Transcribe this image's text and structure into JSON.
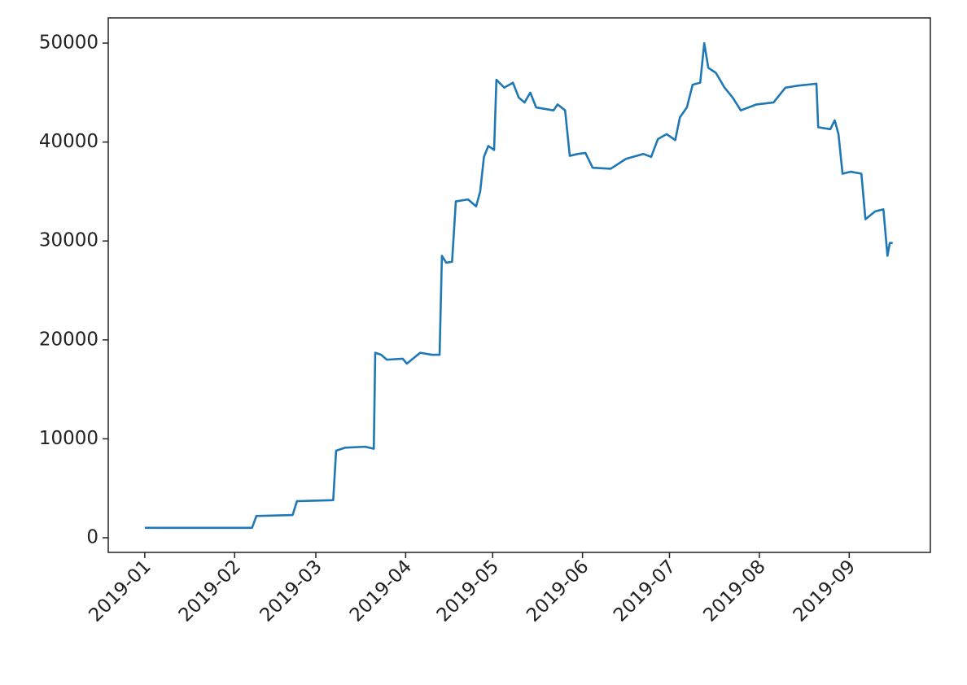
{
  "chart_data": {
    "type": "line",
    "x": [
      0,
      37,
      38.5,
      51,
      52.5,
      65,
      66,
      69,
      76,
      79,
      79.5,
      81.5,
      83.5,
      89,
      90.4,
      95,
      99,
      101.7,
      102.5,
      104,
      106,
      107.3,
      111.5,
      114.3,
      115.7,
      117,
      118.5,
      120.5,
      121.3,
      124,
      127,
      129,
      131,
      133,
      135,
      141,
      142.4,
      145,
      146.6,
      149.4,
      152,
      154.5,
      160.7,
      166,
      172,
      174.7,
      177,
      180,
      183,
      184.6,
      187,
      189,
      191.6,
      193,
      194.4,
      197,
      200,
      202.8,
      205.6,
      211,
      216.9,
      221,
      225.3,
      231.7,
      232.3,
      236.5,
      238,
      239.3,
      240.7,
      243.5,
      247.2,
      248.6,
      252,
      254.8,
      256.2,
      257,
      258
    ],
    "series": [
      {
        "color": "#1f77b4",
        "values": [
          1000,
          1000,
          2200,
          2300,
          3700,
          3800,
          8800,
          9100,
          9200,
          9000,
          18700,
          18500,
          18000,
          18100,
          17600,
          18700,
          18500,
          18500,
          28500,
          27800,
          27900,
          34000,
          34200,
          33500,
          35000,
          38500,
          39600,
          39200,
          46300,
          45500,
          46000,
          44500,
          44000,
          45000,
          43500,
          43200,
          43800,
          43200,
          38600,
          38800,
          38900,
          37400,
          37300,
          38300,
          38800,
          38500,
          40300,
          40800,
          40200,
          42500,
          43500,
          45800,
          46000,
          50000,
          47500,
          47000,
          45500,
          44500,
          43200,
          43800,
          44000,
          45500,
          45700,
          45900,
          41500,
          41300,
          42200,
          40800,
          36800,
          37000,
          36800,
          32200,
          33000,
          33200,
          28500,
          29800,
          29800
        ]
      }
    ],
    "xlim": [
      -12.6,
      271
    ],
    "xticks": [
      {
        "value": 0,
        "label": "2019-01"
      },
      {
        "value": 31,
        "label": "2019-02"
      },
      {
        "value": 59,
        "label": "2019-03"
      },
      {
        "value": 90,
        "label": "2019-04"
      },
      {
        "value": 120,
        "label": "2019-05"
      },
      {
        "value": 151,
        "label": "2019-06"
      },
      {
        "value": 181,
        "label": "2019-07"
      },
      {
        "value": 212,
        "label": "2019-08"
      },
      {
        "value": 243,
        "label": "2019-09"
      }
    ],
    "ylim": [
      -1480,
      52550
    ],
    "yticks": [
      0,
      10000,
      20000,
      30000,
      40000,
      50000
    ],
    "grid": false
  }
}
